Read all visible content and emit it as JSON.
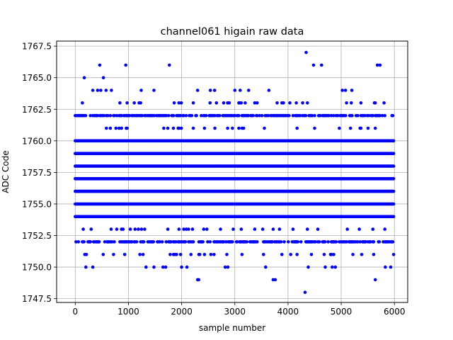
{
  "chart_data": {
    "type": "scatter",
    "title": "channel061 higain raw data",
    "xlabel": "sample number",
    "ylabel": "ADC Code",
    "xlim": [
      -350,
      6250
    ],
    "ylim": [
      1747.2,
      1767.9
    ],
    "xticks": [
      0,
      1000,
      2000,
      3000,
      4000,
      5000,
      6000
    ],
    "xtick_labels": [
      "0",
      "1000",
      "2000",
      "3000",
      "4000",
      "5000",
      "6000"
    ],
    "yticks": [
      1747.5,
      1750.0,
      1752.5,
      1755.0,
      1757.5,
      1760.0,
      1762.5,
      1765.0,
      1767.5
    ],
    "ytick_labels": [
      "1747.5",
      "1750.0",
      "1752.5",
      "1755.0",
      "1757.5",
      "1760.0",
      "1762.5",
      "1765.0",
      "1767.5"
    ],
    "grid": true,
    "marker_color": "#0000ff",
    "sample_count": 6000,
    "dense_levels": [
      1754,
      1755,
      1756,
      1757,
      1758,
      1759,
      1760
    ],
    "medium_levels": [
      1752,
      1762
    ],
    "sparse_levels": [
      1751,
      1753,
      1761,
      1763
    ],
    "outliers": [
      {
        "x": 170,
        "y": 1765
      },
      {
        "x": 460,
        "y": 1766
      },
      {
        "x": 530,
        "y": 1765
      },
      {
        "x": 950,
        "y": 1766
      },
      {
        "x": 1770,
        "y": 1766
      },
      {
        "x": 4340,
        "y": 1767
      },
      {
        "x": 4480,
        "y": 1766
      },
      {
        "x": 4630,
        "y": 1766
      },
      {
        "x": 5680,
        "y": 1766
      },
      {
        "x": 5730,
        "y": 1766
      },
      {
        "x": 330,
        "y": 1764
      },
      {
        "x": 420,
        "y": 1764
      },
      {
        "x": 480,
        "y": 1764
      },
      {
        "x": 580,
        "y": 1764
      },
      {
        "x": 680,
        "y": 1764
      },
      {
        "x": 1240,
        "y": 1764
      },
      {
        "x": 1480,
        "y": 1764
      },
      {
        "x": 2300,
        "y": 1764
      },
      {
        "x": 2540,
        "y": 1764
      },
      {
        "x": 2620,
        "y": 1764
      },
      {
        "x": 3000,
        "y": 1764
      },
      {
        "x": 3100,
        "y": 1764
      },
      {
        "x": 3260,
        "y": 1764
      },
      {
        "x": 3640,
        "y": 1764
      },
      {
        "x": 5020,
        "y": 1764
      },
      {
        "x": 5080,
        "y": 1764
      },
      {
        "x": 5200,
        "y": 1764
      },
      {
        "x": 200,
        "y": 1750
      },
      {
        "x": 330,
        "y": 1750
      },
      {
        "x": 1330,
        "y": 1750
      },
      {
        "x": 1480,
        "y": 1750
      },
      {
        "x": 1650,
        "y": 1750
      },
      {
        "x": 1700,
        "y": 1750
      },
      {
        "x": 2000,
        "y": 1750
      },
      {
        "x": 2100,
        "y": 1750
      },
      {
        "x": 2820,
        "y": 1750
      },
      {
        "x": 2870,
        "y": 1750
      },
      {
        "x": 3580,
        "y": 1750
      },
      {
        "x": 4380,
        "y": 1750
      },
      {
        "x": 4700,
        "y": 1750
      },
      {
        "x": 4830,
        "y": 1750
      },
      {
        "x": 4890,
        "y": 1750
      },
      {
        "x": 5830,
        "y": 1750
      },
      {
        "x": 5930,
        "y": 1750
      },
      {
        "x": 2300,
        "y": 1749
      },
      {
        "x": 2320,
        "y": 1749
      },
      {
        "x": 3720,
        "y": 1749
      },
      {
        "x": 3760,
        "y": 1749
      },
      {
        "x": 5640,
        "y": 1749
      },
      {
        "x": 4320,
        "y": 1748
      }
    ]
  }
}
